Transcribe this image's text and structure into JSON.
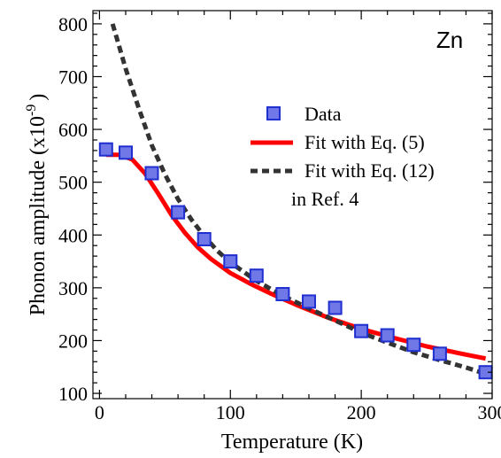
{
  "colors": {
    "marker_fill": "#6f78e6",
    "marker_stroke": "#1f2fd0",
    "fit_line": "#ff0000",
    "ref_line": "#333333",
    "axis": "#000000"
  },
  "chart_data": {
    "type": "scatter",
    "title": "",
    "annotation": "Zn",
    "xlabel": "Temperature (K)",
    "ylabel_main": "Phonon amplitude (x10",
    "ylabel_exp": "-9",
    "ylabel_tail": ")",
    "xlim": [
      -5,
      300
    ],
    "ylim": [
      90,
      825
    ],
    "xticks": [
      0,
      100,
      200,
      300
    ],
    "xtick_labels": [
      "0",
      "100",
      "200",
      "300"
    ],
    "yticks": [
      100,
      200,
      300,
      400,
      500,
      600,
      700,
      800
    ],
    "ytick_labels": [
      "100",
      "200",
      "300",
      "400",
      "500",
      "600",
      "700",
      "800"
    ],
    "grid": false,
    "legend_position": "upper-right",
    "series": [
      {
        "name": "Data",
        "kind": "markers",
        "marker": "square",
        "x": [
          5,
          20,
          40,
          60,
          80,
          100,
          120,
          140,
          160,
          180,
          200,
          220,
          240,
          260,
          295
        ],
        "y": [
          562,
          556,
          517,
          443,
          392,
          350,
          323,
          288,
          274,
          262,
          218,
          210,
          192,
          175,
          140
        ]
      },
      {
        "name": "Fit with Eq. (5)",
        "kind": "solid-line",
        "x": [
          5,
          15,
          25,
          35,
          45,
          55,
          65,
          75,
          85,
          100,
          115,
          130,
          150,
          175,
          200,
          225,
          250,
          275,
          295
        ],
        "y": [
          552,
          552,
          543,
          516,
          478,
          438,
          405,
          377,
          355,
          328,
          308,
          290,
          268,
          243,
          222,
          205,
          189,
          176,
          166
        ]
      },
      {
        "name": "Fit with Eq. (12)",
        "name_line2": "in Ref. 4",
        "kind": "dashed-line",
        "x": [
          10,
          20,
          30,
          40,
          50,
          60,
          70,
          80,
          90,
          100,
          120,
          140,
          160,
          180,
          200,
          220,
          240,
          260,
          280,
          295
        ],
        "y": [
          800,
          715,
          640,
          570,
          515,
          468,
          430,
          398,
          370,
          348,
          313,
          285,
          261,
          238,
          215,
          196,
          178,
          163,
          149,
          137
        ]
      }
    ]
  }
}
